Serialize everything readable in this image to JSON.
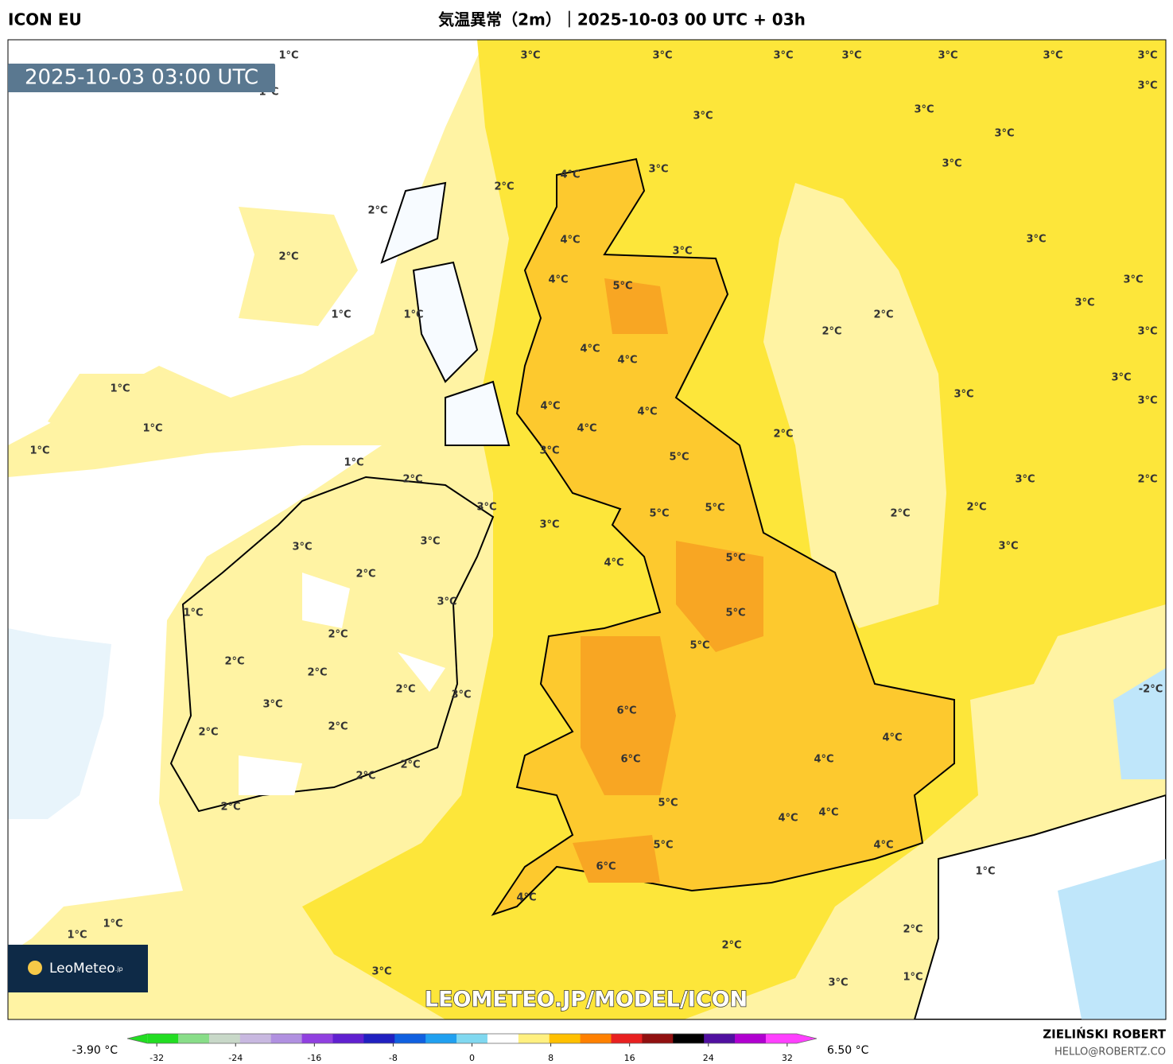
{
  "header": {
    "model": "ICON EU",
    "title": "気温異常（2m）｜2025-10-03 00 UTC + 03h"
  },
  "timestamp": "2025-10-03 03:00 UTC",
  "watermark": "LEOMETEO.JP/MODEL/ICON",
  "logo": {
    "brand": "LeoMeteo",
    "suffix": ".jp"
  },
  "credits": {
    "author": "ZIELIŃSKI ROBERT",
    "contact": "HELLO@ROBERTZ.CO"
  },
  "map": {
    "labels": [
      "1°C",
      "3°C",
      "3°C",
      "3°C",
      "3°C",
      "3°C",
      "3°C",
      "3°C",
      "3°C",
      "1°C",
      "3°C",
      "3°C",
      "3°C",
      "3°C",
      "4°C",
      "3°C",
      "2°C",
      "2°C",
      "4°C",
      "3°C",
      "2°C",
      "3°C",
      "4°C",
      "5°C",
      "3°C",
      "3°C",
      "1°C",
      "1°C",
      "2°C",
      "2°C",
      "3°C",
      "4°C",
      "4°C",
      "3°C",
      "1°C",
      "3°C",
      "3°C",
      "4°C",
      "4°C",
      "1°C",
      "4°C",
      "2°C",
      "1°C",
      "3°C",
      "5°C",
      "1°C",
      "2°C",
      "3°C",
      "2°C",
      "3°C",
      "2°C",
      "5°C",
      "5°C",
      "2°C",
      "3°C",
      "3°C",
      "3°C",
      "3°C",
      "5°C",
      "4°C",
      "2°C",
      "3°C",
      "1°C",
      "5°C",
      "2°C",
      "5°C",
      "2°C",
      "2°C",
      "2°C",
      "3°C",
      "3°C",
      "-2°C",
      "6°C",
      "2°C",
      "2°C",
      "4°C",
      "6°C",
      "4°C",
      "2°C",
      "2°C",
      "5°C",
      "4°C",
      "4°C",
      "2°C",
      "5°C",
      "4°C",
      "6°C",
      "1°C",
      "4°C",
      "1°C",
      "1°C",
      "2°C",
      "2°C",
      "3°C",
      "1°C",
      "3°C"
    ]
  },
  "colorbar": {
    "min_label": "-3.90 °C",
    "max_label": "6.50 °C",
    "lim": [
      -35,
      35
    ],
    "ticks": [
      -32,
      -24,
      -16,
      -8,
      0,
      8,
      16,
      24,
      32
    ],
    "colors": [
      "#22dd22",
      "#88dd88",
      "#c8d8c8",
      "#c8b8e0",
      "#b090e0",
      "#9040e0",
      "#6020d0",
      "#2020c0",
      "#1060e0",
      "#20a0f0",
      "#80d8f0",
      "#ffffff",
      "#fff080",
      "#ffc000",
      "#ff8000",
      "#e82020",
      "#901010",
      "#000000",
      "#5010a0",
      "#b000d0",
      "#ff40ff"
    ]
  }
}
